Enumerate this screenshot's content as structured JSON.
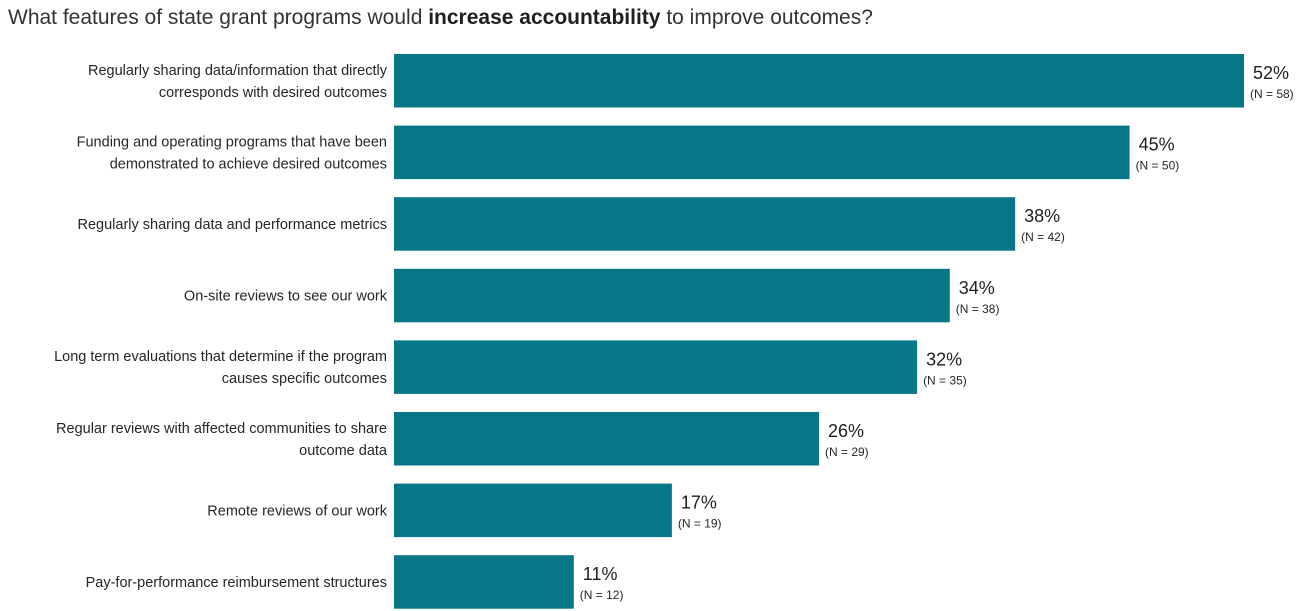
{
  "title": {
    "prefix": "What features of state grant programs would ",
    "emphasis": "increase accountability",
    "suffix": " to improve outcomes?"
  },
  "colors": {
    "bar": "#077686",
    "label_text": "#262626",
    "value_text": "#1f1f1f",
    "n_text": "#262626"
  },
  "chart_data": {
    "type": "bar",
    "orientation": "horizontal",
    "title": "What features of state grant programs would increase accountability to improve outcomes?",
    "categories": [
      [
        "Regularly sharing data/information that directly",
        "corresponds with desired outcomes"
      ],
      [
        "Funding and operating programs that have been",
        "demonstrated to achieve desired outcomes"
      ],
      [
        "Regularly sharing data and performance metrics"
      ],
      [
        "On-site reviews to see our work"
      ],
      [
        "Long term evaluations that determine if the program",
        "causes specific outcomes"
      ],
      [
        "Regular reviews with affected communities to share",
        "outcome data"
      ],
      [
        "Remote reviews of our work"
      ],
      [
        "Pay-for-performance reimbursement structures"
      ]
    ],
    "values": [
      52,
      45,
      38,
      34,
      32,
      26,
      17,
      11
    ],
    "value_labels": [
      "52%",
      "45%",
      "38%",
      "34%",
      "32%",
      "26%",
      "17%",
      "11%"
    ],
    "n_labels": [
      "(N = 58)",
      "(N = 50)",
      "(N = 42)",
      "(N = 38)",
      "(N = 35)",
      "(N = 29)",
      "(N = 19)",
      "(N = 12)"
    ],
    "xlim": [
      0,
      52
    ],
    "grid": false,
    "axes_visible": false,
    "legend": "none"
  }
}
